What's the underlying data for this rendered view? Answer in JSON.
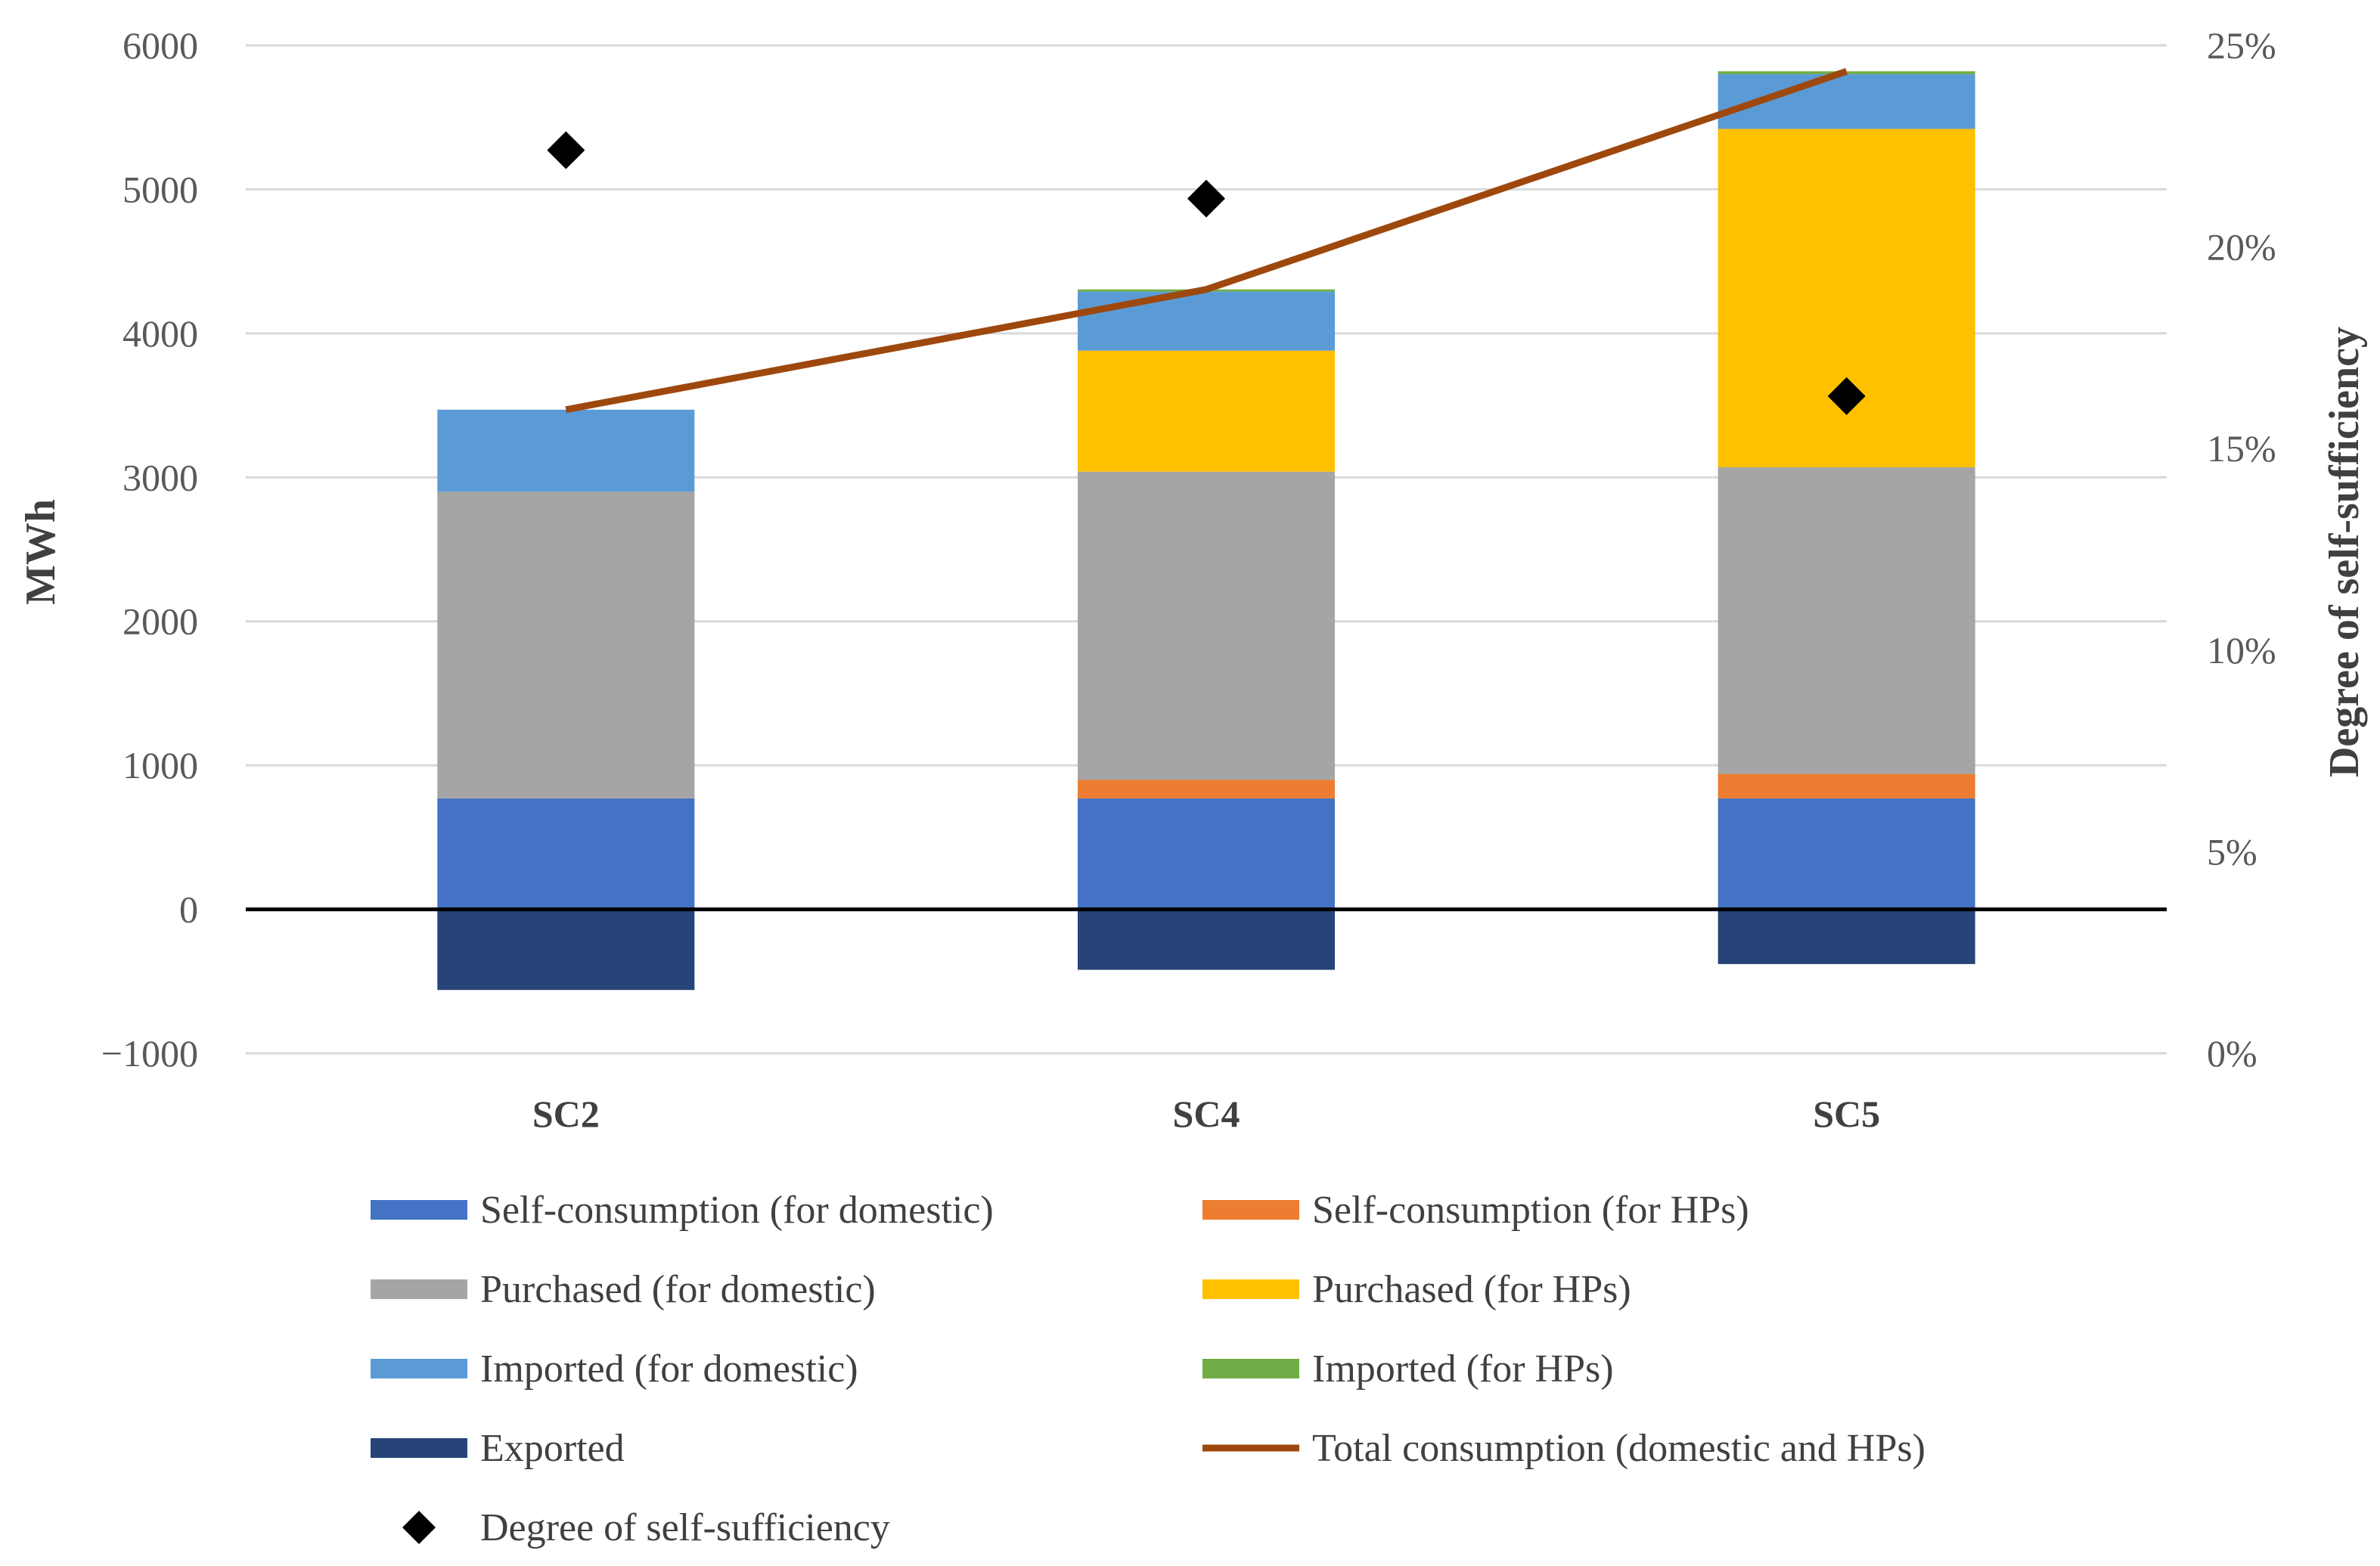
{
  "chart_data": {
    "type": "bar",
    "stacked": true,
    "categories": [
      "SC2",
      "SC4",
      "SC5"
    ],
    "ylabel": "MWh",
    "ylabel_right": "Degree of self-sufficiency",
    "ylim": [
      -1000,
      6000
    ],
    "yticks": [
      6000,
      5000,
      4000,
      3000,
      2000,
      1000,
      0,
      -1000
    ],
    "ytick_labels": [
      "6000",
      "5000",
      "4000",
      "3000",
      "2000",
      "1000",
      "0",
      "−1000"
    ],
    "ylim_right": [
      0,
      25
    ],
    "yticks_right": [
      25,
      20,
      15,
      10,
      5,
      0
    ],
    "ytick_labels_right": [
      "25%",
      "20%",
      "15%",
      "10%",
      "5%",
      "0%"
    ],
    "grid": true,
    "legend_position": "bottom",
    "series": [
      {
        "name": "Self-consumption (for domestic)",
        "kind": "bar",
        "color": "#4472C4",
        "values": [
          770,
          770,
          770
        ]
      },
      {
        "name": "Self-consumption (for HPs)",
        "kind": "bar",
        "color": "#ED7D31",
        "values": [
          0,
          130,
          170
        ]
      },
      {
        "name": "Purchased (for domestic)",
        "kind": "bar",
        "color": "#A5A5A5",
        "values": [
          2130,
          2140,
          2130
        ]
      },
      {
        "name": "Purchased (for HPs)",
        "kind": "bar",
        "color": "#FFC000",
        "values": [
          0,
          840,
          2350
        ]
      },
      {
        "name": "Imported (for domestic)",
        "kind": "bar",
        "color": "#5B9BD5",
        "values": [
          570,
          410,
          380
        ]
      },
      {
        "name": "Imported (for HPs)",
        "kind": "bar",
        "color": "#70AD47",
        "values": [
          0,
          15,
          20
        ]
      },
      {
        "name": "Exported",
        "kind": "bar",
        "color": "#264478",
        "values": [
          -560,
          -420,
          -380
        ]
      },
      {
        "name": "Total consumption (domestic and HPs)",
        "kind": "line",
        "axis": "left",
        "color": "#9E480E",
        "values": [
          3470,
          4305,
          5820
        ]
      },
      {
        "name": "Degree of self-sufficiency",
        "kind": "scatter",
        "axis": "right",
        "marker": "diamond",
        "color": "#000000",
        "values": [
          22.4,
          21.2,
          16.3
        ]
      }
    ]
  }
}
